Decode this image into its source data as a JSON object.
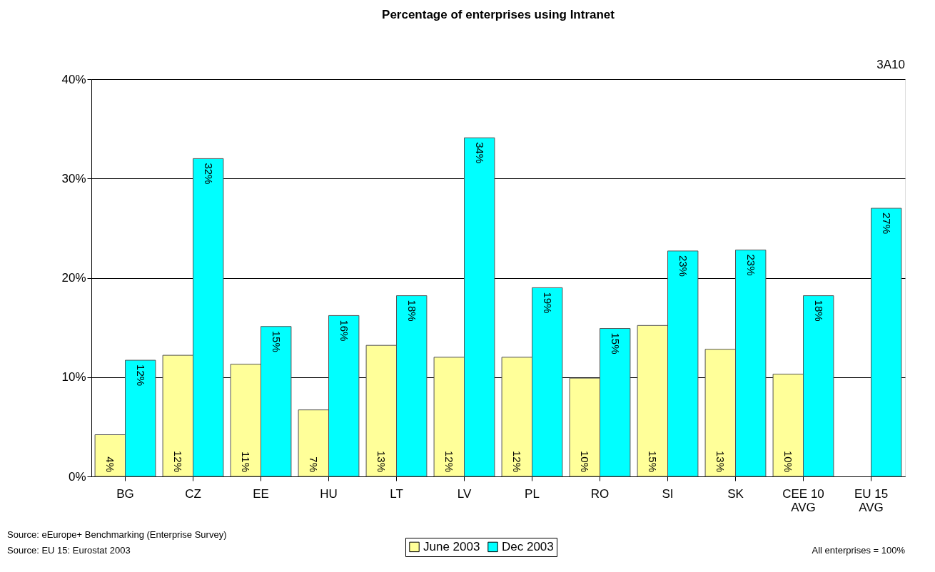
{
  "chart_data": {
    "type": "bar",
    "title": "Percentage of enterprises using Intranet",
    "categories": [
      "BG",
      "CZ",
      "EE",
      "HU",
      "LT",
      "LV",
      "PL",
      "RO",
      "SI",
      "SK",
      "CEE 10 AVG",
      "EU 15 AVG"
    ],
    "series": [
      {
        "name": "June 2003",
        "color": "#ffff99",
        "values": [
          4.2,
          12.2,
          11.3,
          6.7,
          13.2,
          12.0,
          12.0,
          9.9,
          15.2,
          12.8,
          10.3,
          null
        ],
        "value_labels": [
          "4%",
          "12%",
          "11%",
          "7%",
          "13%",
          "12%",
          "12%",
          "10%",
          "15%",
          "13%",
          "10%",
          null
        ]
      },
      {
        "name": "Dec 2003",
        "color": "#00ffff",
        "values": [
          11.7,
          32.0,
          15.1,
          16.2,
          18.2,
          34.1,
          19.0,
          14.9,
          22.7,
          22.8,
          18.2,
          27.0
        ],
        "value_labels": [
          "12%",
          "32%",
          "15%",
          "16%",
          "18%",
          "34%",
          "19%",
          "15%",
          "23%",
          "23%",
          "18%",
          "27%"
        ]
      }
    ],
    "ylim": [
      0,
      40
    ],
    "yticks": [
      {
        "value": 0,
        "label": "0%"
      },
      {
        "value": 10,
        "label": "10%"
      },
      {
        "value": 20,
        "label": "20%"
      },
      {
        "value": 30,
        "label": "30%"
      },
      {
        "value": 40,
        "label": "40%"
      }
    ],
    "grid": "y",
    "legend": "bottom",
    "annotations": [
      "3A10",
      "Source: eEurope+ Benchmarking (Enterprise Survey)",
      "Source: EU 15: Eurostat 2003",
      "All enterprises = 100%"
    ]
  }
}
